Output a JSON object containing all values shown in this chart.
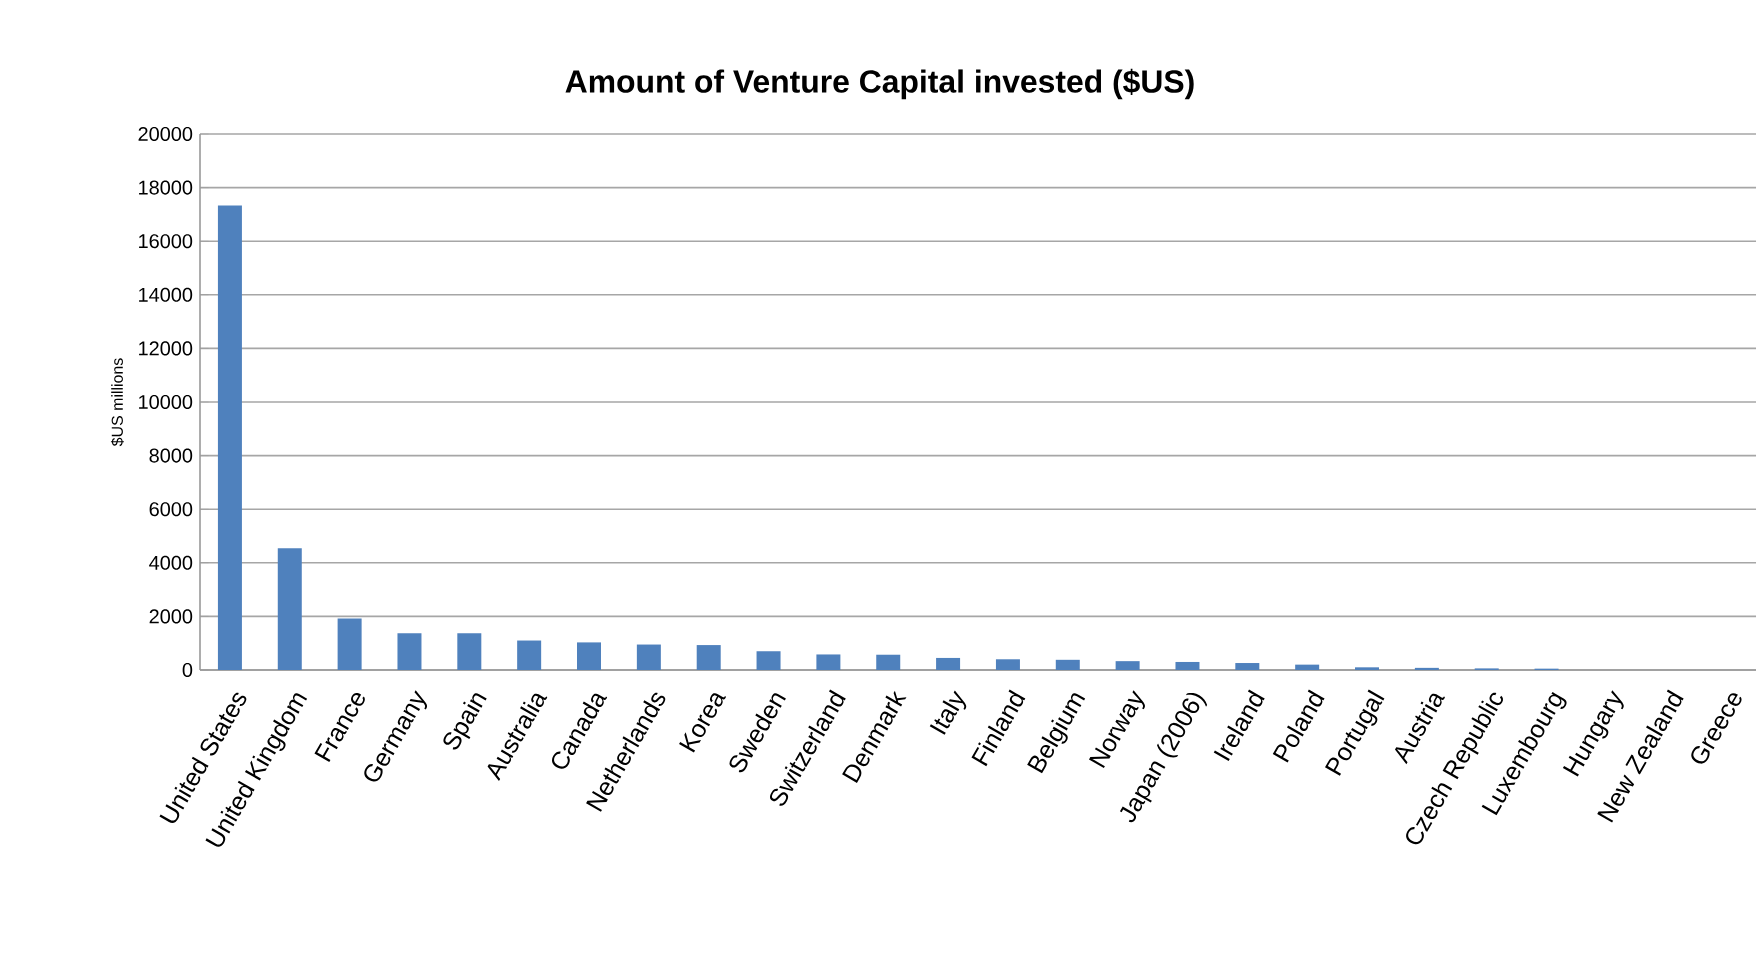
{
  "chart_data": {
    "type": "bar",
    "title": "Amount of Venture Capital invested ($US)",
    "ylabel": "$US millions",
    "categories": [
      "United States",
      "United Kingdom",
      "France",
      "Germany",
      "Spain",
      "Australia",
      "Canada",
      "Netherlands",
      "Korea",
      "Sweden",
      "Switzerland",
      "Denmark",
      "Italy",
      "Finland",
      "Belgium",
      "Norway",
      "Japan (2006)",
      "Ireland",
      "Poland",
      "Portugal",
      "Austria",
      "Czech Republic",
      "Luxembourg",
      "Hungary",
      "New Zealand",
      "Greece"
    ],
    "values": [
      17330,
      4540,
      1920,
      1370,
      1370,
      1100,
      1030,
      950,
      930,
      700,
      580,
      570,
      450,
      400,
      380,
      330,
      300,
      260,
      200,
      100,
      80,
      60,
      50,
      null,
      null,
      null
    ],
    "color": "#4f81bd",
    "ylim": [
      0,
      20000
    ],
    "yticks": [
      0,
      2000,
      4000,
      6000,
      8000,
      10000,
      12000,
      14000,
      16000,
      18000,
      20000
    ],
    "grid": "y"
  }
}
